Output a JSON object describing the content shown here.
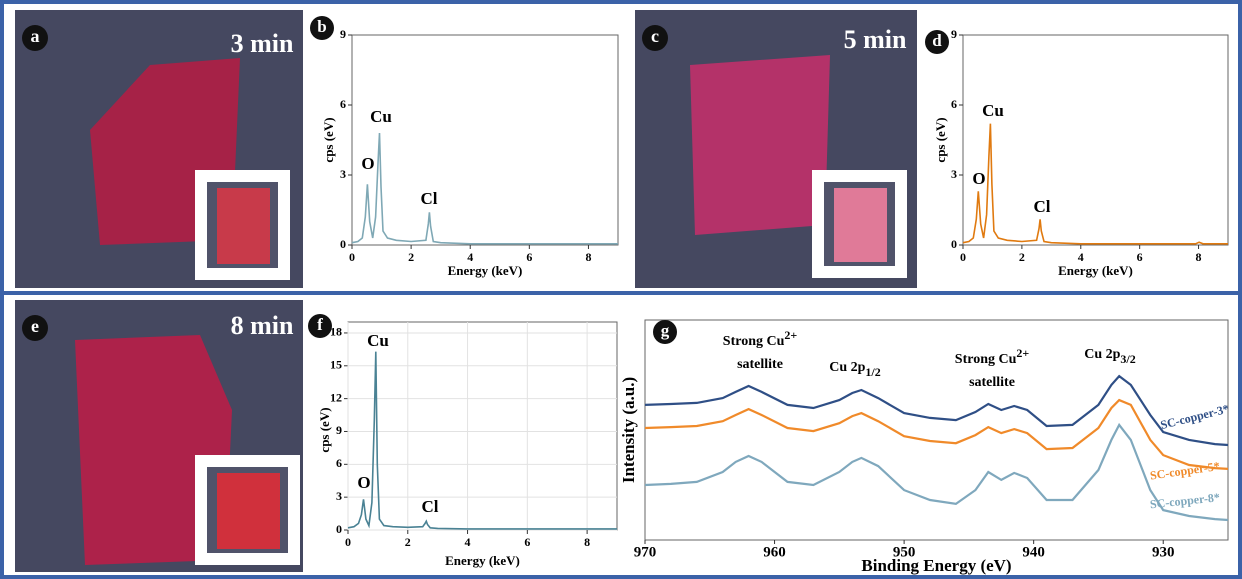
{
  "photos": [
    {
      "letter": "a",
      "caption": "3 min"
    },
    {
      "letter": "c",
      "caption": "5 min"
    },
    {
      "letter": "e",
      "caption": "8 min"
    }
  ],
  "chart_data": [
    {
      "panel_label": "b",
      "type": "line",
      "x": [
        0,
        0.2,
        0.35,
        0.45,
        0.52,
        0.6,
        0.7,
        0.8,
        0.88,
        0.93,
        0.98,
        1.05,
        1.2,
        1.5,
        2,
        2.5,
        2.58,
        2.62,
        2.66,
        2.75,
        3,
        4,
        5,
        6,
        7,
        8,
        9
      ],
      "series": [
        {
          "color": "#7fa8b5",
          "values": [
            0.1,
            0.15,
            0.3,
            1.2,
            2.6,
            1.0,
            0.3,
            1.2,
            3.5,
            4.8,
            2.5,
            0.6,
            0.3,
            0.2,
            0.15,
            0.2,
            0.9,
            1.4,
            0.8,
            0.15,
            0.1,
            0.05,
            0.05,
            0.05,
            0.05,
            0.05,
            0.05
          ]
        }
      ],
      "xlim": [
        0,
        9
      ],
      "ylim": [
        0,
        9
      ],
      "xticks": [
        0,
        2,
        4,
        6,
        8
      ],
      "yticks": [
        0,
        3,
        6,
        9
      ],
      "x_label": "Energy (keV)",
      "y_label": "cps (eV)",
      "annotations": [
        "O",
        "Cu",
        "Cl"
      ],
      "grid": false
    },
    {
      "panel_label": "d",
      "type": "line",
      "x": [
        0,
        0.2,
        0.35,
        0.45,
        0.52,
        0.6,
        0.7,
        0.8,
        0.88,
        0.93,
        0.98,
        1.05,
        1.2,
        1.5,
        2,
        2.5,
        2.58,
        2.62,
        2.66,
        2.75,
        3,
        4,
        5,
        6,
        7,
        7.9,
        8.02,
        8.15,
        9
      ],
      "series": [
        {
          "color": "#e07a10",
          "values": [
            0.1,
            0.15,
            0.3,
            1.1,
            2.3,
            0.9,
            0.3,
            1.3,
            3.8,
            5.2,
            2.6,
            0.6,
            0.3,
            0.2,
            0.15,
            0.2,
            0.7,
            1.1,
            0.6,
            0.15,
            0.1,
            0.05,
            0.05,
            0.05,
            0.05,
            0.05,
            0.12,
            0.05,
            0.05
          ]
        }
      ],
      "xlim": [
        0,
        9
      ],
      "ylim": [
        0,
        9
      ],
      "xticks": [
        0,
        2,
        4,
        6,
        8
      ],
      "yticks": [
        0,
        3,
        6,
        9
      ],
      "x_label": "Energy (keV)",
      "y_label": "cps (eV)",
      "annotations": [
        "O",
        "Cu",
        "Cl"
      ],
      "grid": false
    },
    {
      "panel_label": "f",
      "type": "line",
      "x": [
        0,
        0.2,
        0.35,
        0.45,
        0.52,
        0.6,
        0.7,
        0.8,
        0.88,
        0.93,
        0.98,
        1.05,
        1.2,
        1.5,
        2,
        2.5,
        2.58,
        2.62,
        2.66,
        2.75,
        3,
        4,
        5,
        6,
        7,
        8,
        9
      ],
      "series": [
        {
          "color": "#4a8294",
          "values": [
            0.2,
            0.3,
            0.6,
            1.4,
            2.8,
            1.0,
            0.4,
            2.5,
            10,
            16.3,
            6,
            1.0,
            0.4,
            0.3,
            0.25,
            0.3,
            0.6,
            0.8,
            0.5,
            0.2,
            0.15,
            0.1,
            0.1,
            0.1,
            0.1,
            0.1,
            0.1
          ]
        }
      ],
      "xlim": [
        0,
        9
      ],
      "ylim": [
        0,
        19
      ],
      "xticks": [
        0,
        2,
        4,
        6,
        8
      ],
      "yticks": [
        0,
        3,
        6,
        9,
        12,
        15,
        18
      ],
      "x_label": "Energy (keV)",
      "y_label": "cps (eV)",
      "annotations": [
        "Cu",
        "O",
        "Cl"
      ],
      "grid": true
    },
    {
      "panel_label": "g",
      "type": "line",
      "x": [
        970,
        968,
        966,
        964,
        963,
        962,
        961,
        959,
        957,
        955,
        954,
        953.3,
        952,
        950,
        948,
        946,
        944.5,
        943.5,
        942.5,
        941.5,
        940.5,
        939,
        937,
        935,
        934,
        933.4,
        932.5,
        931,
        930,
        928,
        926,
        925
      ],
      "series": [
        {
          "name": "SC-copper-3*",
          "color": "#2f4f86",
          "values": [
            6.14,
            6.18,
            6.23,
            6.45,
            6.73,
            7.0,
            6.73,
            6.14,
            6.0,
            6.36,
            6.68,
            6.82,
            6.45,
            5.77,
            5.55,
            5.45,
            5.82,
            6.18,
            5.91,
            6.09,
            5.91,
            5.18,
            5.23,
            6.14,
            7.05,
            7.45,
            7.05,
            5.68,
            4.91,
            4.55,
            4.36,
            4.32
          ]
        },
        {
          "name": "SC-copper-5*",
          "color": "#f08a2a",
          "values": [
            5.09,
            5.13,
            5.18,
            5.4,
            5.68,
            5.95,
            5.68,
            5.09,
            4.95,
            5.31,
            5.63,
            5.77,
            5.4,
            4.72,
            4.5,
            4.4,
            4.77,
            5.13,
            4.86,
            5.04,
            4.86,
            4.13,
            4.18,
            5.09,
            6.0,
            6.36,
            6.14,
            4.55,
            3.86,
            3.41,
            3.27,
            3.23
          ]
        },
        {
          "name": "SC-copper-8*",
          "color": "#7fa8bd",
          "values": [
            2.5,
            2.55,
            2.64,
            3.09,
            3.55,
            3.82,
            3.55,
            2.64,
            2.5,
            3.09,
            3.55,
            3.73,
            3.36,
            2.27,
            1.82,
            1.64,
            2.27,
            3.09,
            2.73,
            3.05,
            2.82,
            1.82,
            1.82,
            3.18,
            4.55,
            5.23,
            4.55,
            2.27,
            1.36,
            1.09,
            0.95,
            0.91
          ]
        }
      ],
      "xlim": [
        970,
        925
      ],
      "ylim": [
        0,
        10
      ],
      "xticks": [
        970,
        960,
        950,
        940,
        930
      ],
      "yticks": [],
      "x_label": "Binding Energy (eV)",
      "y_label": "Intensity (a.u.)",
      "annotations": [
        {
          "base": "Strong Cu",
          "sup": "2+",
          "second_line": "satellite"
        },
        {
          "base": "Cu 2p",
          "sub": "1/2"
        },
        {
          "base": "Strong Cu",
          "sup": "2+",
          "second_line": "satellite"
        },
        {
          "base": "Cu 2p",
          "sub": "3/2"
        }
      ],
      "grid": false
    }
  ]
}
